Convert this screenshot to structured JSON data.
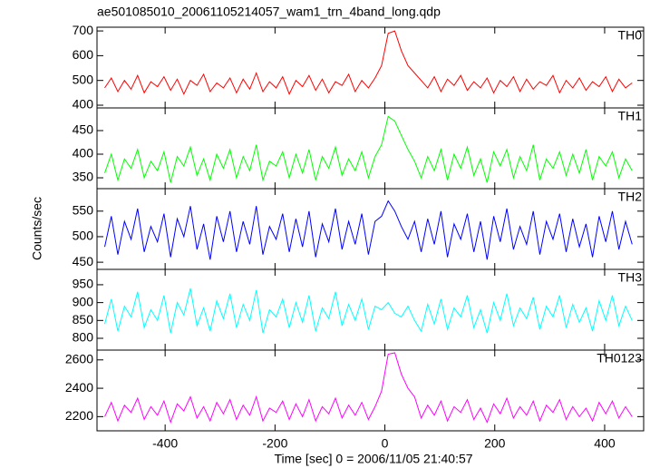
{
  "chart_data": {
    "type": "line",
    "title": "ae501085010_20061105214057_wam1_trn_4band_long.qdp",
    "xlabel": "Time [sec] 0 = 2006/11/05 21:40:57",
    "ylabel": "Counts/sec",
    "xlim": [
      -524,
      471
    ],
    "xticks": [
      -400,
      -200,
      0,
      200,
      400
    ],
    "x": [
      -510,
      -498,
      -486,
      -474,
      -462,
      -450,
      -438,
      -426,
      -414,
      -402,
      -390,
      -378,
      -366,
      -354,
      -342,
      -330,
      -318,
      -306,
      -294,
      -282,
      -270,
      -258,
      -246,
      -234,
      -222,
      -210,
      -198,
      -186,
      -174,
      -162,
      -150,
      -138,
      -126,
      -114,
      -102,
      -90,
      -78,
      -66,
      -54,
      -42,
      -30,
      -18,
      -6,
      6,
      18,
      30,
      42,
      54,
      66,
      78,
      90,
      102,
      114,
      126,
      138,
      150,
      162,
      174,
      186,
      198,
      210,
      222,
      234,
      246,
      258,
      270,
      282,
      294,
      306,
      318,
      330,
      342,
      354,
      366,
      378,
      390,
      402,
      414,
      426,
      438,
      450
    ],
    "panels": [
      {
        "name": "TH0",
        "color": "#ff0000",
        "ylim": [
          389,
          715
        ],
        "yticks": [
          400,
          500,
          600,
          700
        ],
        "values": [
          470,
          510,
          455,
          500,
          465,
          520,
          450,
          495,
          475,
          515,
          460,
          505,
          445,
          500,
          480,
          525,
          455,
          490,
          470,
          510,
          450,
          505,
          465,
          530,
          455,
          495,
          470,
          515,
          445,
          500,
          475,
          520,
          460,
          505,
          450,
          495,
          480,
          525,
          455,
          500,
          470,
          510,
          560,
          690,
          700,
          620,
          560,
          530,
          500,
          470,
          515,
          455,
          505,
          480,
          520,
          460,
          495,
          470,
          510,
          450,
          500,
          475,
          515,
          455,
          505,
          465,
          495,
          480,
          520,
          450,
          500,
          470,
          510,
          460,
          495,
          475,
          515,
          455,
          505,
          470,
          490
        ]
      },
      {
        "name": "TH1",
        "color": "#00ff00",
        "ylim": [
          327,
          498
        ],
        "yticks": [
          350,
          400,
          450
        ],
        "values": [
          360,
          400,
          345,
          390,
          370,
          410,
          350,
          385,
          365,
          405,
          340,
          395,
          375,
          415,
          355,
          390,
          345,
          400,
          370,
          410,
          350,
          395,
          365,
          420,
          345,
          385,
          375,
          405,
          350,
          400,
          360,
          410,
          345,
          395,
          370,
          415,
          355,
          390,
          365,
          405,
          350,
          395,
          420,
          480,
          470,
          440,
          410,
          385,
          350,
          395,
          365,
          410,
          345,
          400,
          370,
          415,
          355,
          390,
          340,
          405,
          375,
          410,
          350,
          395,
          365,
          420,
          345,
          390,
          370,
          405,
          355,
          400,
          360,
          410,
          345,
          395,
          375,
          405,
          350,
          390,
          365
        ]
      },
      {
        "name": "TH2",
        "color": "#0000ff",
        "ylim": [
          436,
          594
        ],
        "yticks": [
          450,
          500,
          550
        ],
        "values": [
          480,
          540,
          465,
          530,
          495,
          555,
          470,
          520,
          490,
          545,
          460,
          535,
          500,
          560,
          475,
          525,
          455,
          540,
          490,
          550,
          470,
          530,
          485,
          560,
          465,
          520,
          495,
          545,
          470,
          535,
          480,
          550,
          460,
          525,
          490,
          555,
          475,
          530,
          485,
          545,
          465,
          530,
          540,
          570,
          550,
          520,
          495,
          530,
          470,
          535,
          485,
          550,
          460,
          525,
          495,
          545,
          470,
          530,
          455,
          540,
          490,
          555,
          475,
          520,
          485,
          550,
          465,
          530,
          495,
          545,
          470,
          535,
          480,
          525,
          460,
          540,
          490,
          550,
          475,
          530,
          485
        ]
      },
      {
        "name": "TH3",
        "color": "#00ffff",
        "ylim": [
          767,
          993
        ],
        "yticks": [
          800,
          850,
          900,
          950
        ],
        "values": [
          840,
          910,
          820,
          890,
          860,
          930,
          830,
          880,
          850,
          920,
          815,
          900,
          865,
          940,
          835,
          885,
          820,
          905,
          855,
          925,
          830,
          895,
          850,
          935,
          815,
          880,
          860,
          910,
          830,
          900,
          845,
          920,
          820,
          885,
          855,
          930,
          835,
          895,
          850,
          910,
          825,
          890,
          880,
          900,
          870,
          860,
          890,
          850,
          820,
          895,
          840,
          910,
          825,
          885,
          860,
          920,
          830,
          880,
          815,
          900,
          850,
          925,
          835,
          885,
          855,
          915,
          825,
          890,
          860,
          920,
          830,
          895,
          845,
          885,
          820,
          905,
          850,
          920,
          835,
          890,
          850
        ]
      },
      {
        "name": "TH0123",
        "color": "#ff00ff",
        "ylim": [
          2100,
          2669
        ],
        "yticks": [
          2200,
          2400,
          2600
        ],
        "values": [
          2200,
          2300,
          2170,
          2280,
          2230,
          2330,
          2180,
          2270,
          2210,
          2310,
          2160,
          2290,
          2240,
          2340,
          2190,
          2270,
          2170,
          2300,
          2220,
          2320,
          2180,
          2280,
          2210,
          2340,
          2170,
          2260,
          2230,
          2310,
          2180,
          2290,
          2200,
          2320,
          2170,
          2270,
          2220,
          2330,
          2190,
          2280,
          2210,
          2300,
          2180,
          2270,
          2380,
          2640,
          2650,
          2500,
          2400,
          2340,
          2190,
          2280,
          2210,
          2310,
          2170,
          2270,
          2230,
          2320,
          2180,
          2260,
          2160,
          2290,
          2220,
          2330,
          2190,
          2270,
          2210,
          2310,
          2170,
          2280,
          2230,
          2320,
          2180,
          2270,
          2200,
          2260,
          2170,
          2300,
          2220,
          2310,
          2190,
          2270,
          2200
        ]
      }
    ]
  }
}
